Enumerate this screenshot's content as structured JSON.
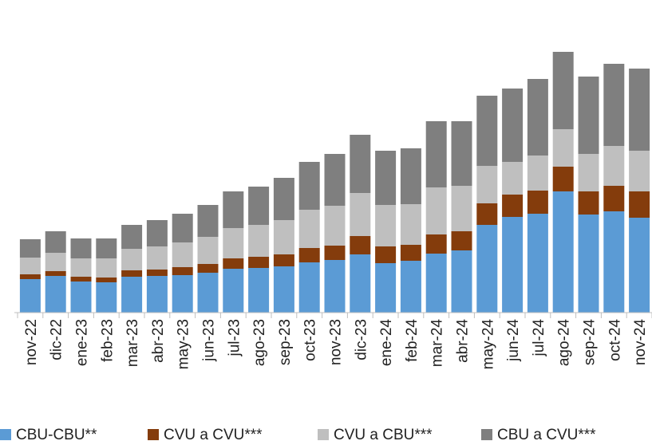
{
  "chart_data": {
    "type": "stacked_bar",
    "categories": [
      "nov-22",
      "dic-22",
      "ene-23",
      "feb-23",
      "mar-23",
      "abr-23",
      "may-23",
      "jun-23",
      "jul-23",
      "ago-23",
      "sep-23",
      "oct-23",
      "nov-23",
      "dic-23",
      "ene-24",
      "feb-24",
      "mar-24",
      "abr-24",
      "may-24",
      "jun-24",
      "jul-24",
      "ago-24",
      "sep-24",
      "oct-24",
      "nov-24"
    ],
    "series": [
      {
        "name": "CBU-CBU**",
        "color": "#5b9bd5",
        "values": [
          42,
          46,
          39,
          38,
          45,
          46,
          47,
          50,
          55,
          56,
          58,
          63,
          66,
          73,
          62,
          65,
          74,
          78,
          110,
          120,
          124,
          152,
          123,
          127,
          119
        ]
      },
      {
        "name": "CVU a CVU***",
        "color": "#843c0c",
        "values": [
          6,
          6,
          6,
          6,
          8,
          8,
          10,
          11,
          13,
          14,
          15,
          18,
          18,
          23,
          21,
          20,
          24,
          24,
          27,
          28,
          29,
          31,
          29,
          32,
          33
        ]
      },
      {
        "name": "CVU a CBU***",
        "color": "#bfbfbf",
        "values": [
          21,
          23,
          23,
          24,
          27,
          29,
          31,
          34,
          38,
          40,
          43,
          48,
          50,
          54,
          52,
          51,
          59,
          57,
          47,
          41,
          44,
          47,
          47,
          50,
          51
        ]
      },
      {
        "name": "CBU a CVU***",
        "color": "#7f7f7f",
        "values": [
          23,
          27,
          25,
          25,
          30,
          33,
          36,
          40,
          46,
          48,
          53,
          60,
          65,
          73,
          68,
          70,
          83,
          81,
          88,
          92,
          96,
          97,
          97,
          103,
          103
        ]
      }
    ],
    "ylim": [
      0,
      340
    ],
    "legend": "bottom"
  }
}
